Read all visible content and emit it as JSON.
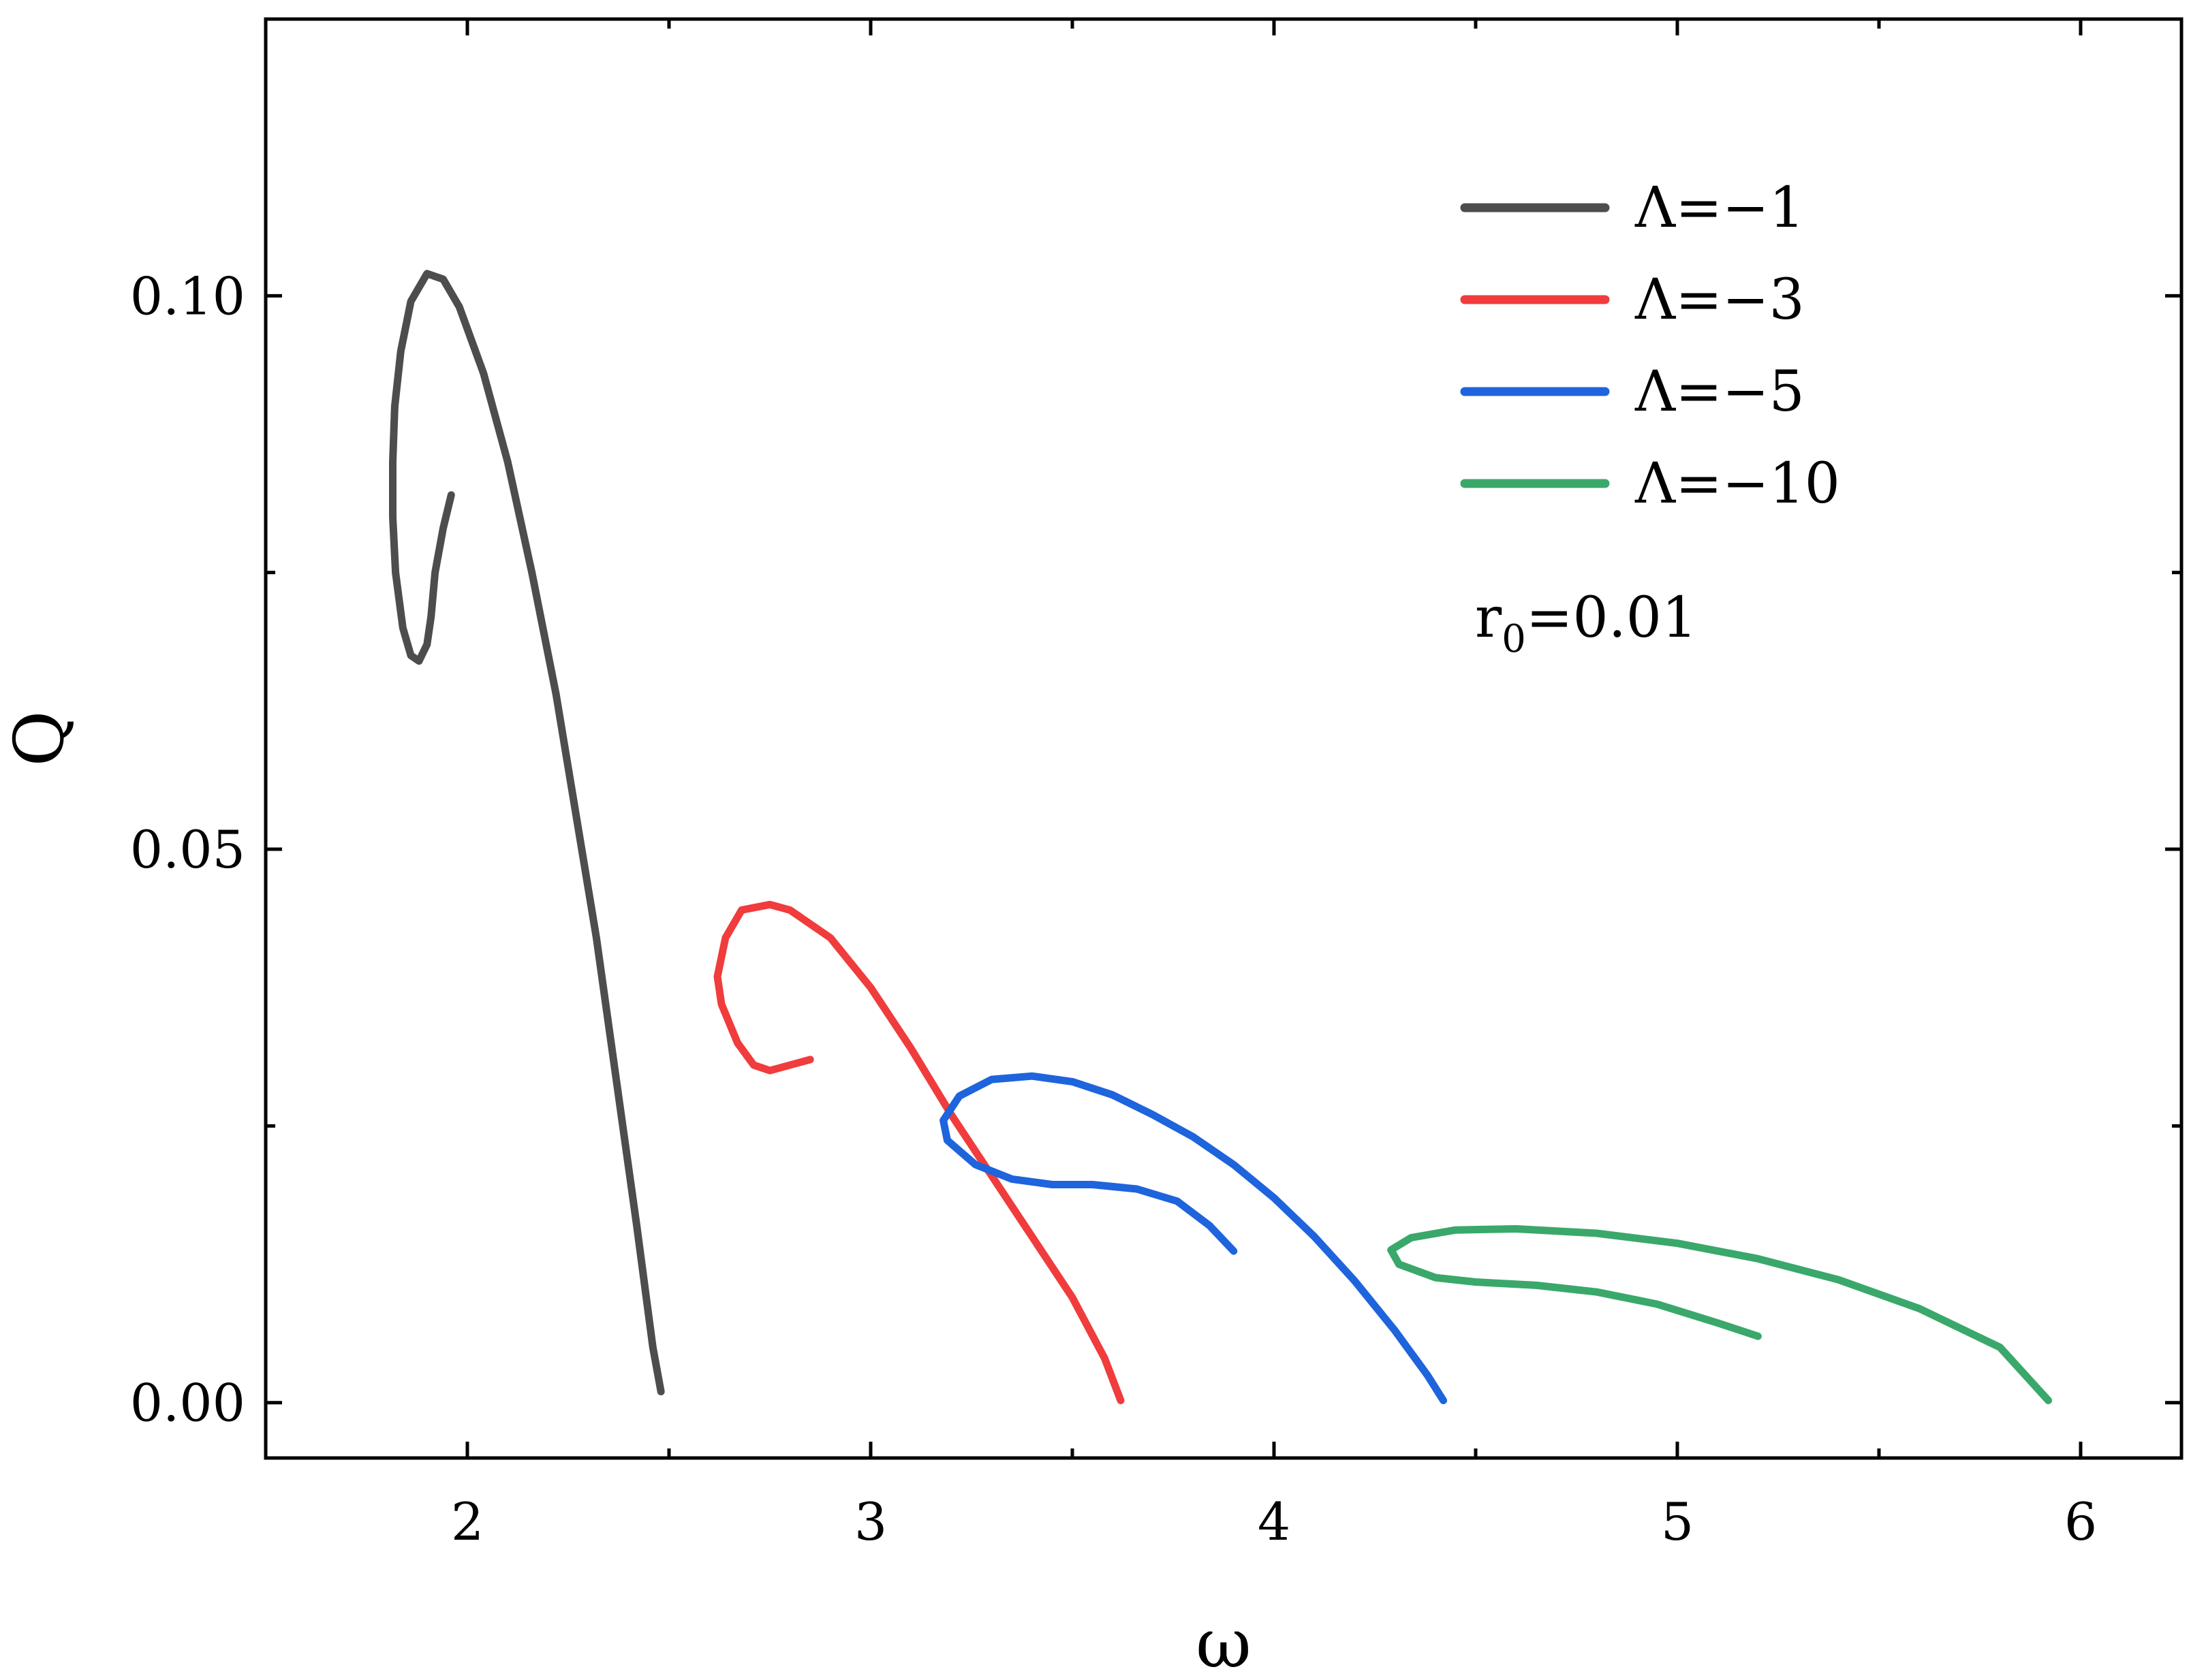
{
  "chart_data": {
    "type": "line",
    "xlabel": "ω",
    "ylabel": "Q",
    "xlim": [
      1.5,
      6.25
    ],
    "ylim": [
      -0.005,
      0.125
    ],
    "x_ticks": [
      2,
      3,
      4,
      5,
      6
    ],
    "x_tick_labels": [
      "2",
      "3",
      "4",
      "5",
      "6"
    ],
    "x_minor_ticks": [
      2.5,
      3.5,
      4.5,
      5.5
    ],
    "y_ticks": [
      0.0,
      0.05,
      0.1
    ],
    "y_tick_labels": [
      "0.00",
      "0.05",
      "0.10"
    ],
    "y_minor_ticks": [
      0.025,
      0.075
    ],
    "grid": false,
    "legend_position": "top-right",
    "annotation": {
      "label": "r",
      "subscript": "0",
      "value": "=0.01"
    },
    "series": [
      {
        "name": "Λ=−1",
        "color": "#4d4d4d",
        "points": [
          [
            1.96,
            0.082
          ],
          [
            1.94,
            0.079
          ],
          [
            1.92,
            0.075
          ],
          [
            1.91,
            0.071
          ],
          [
            1.9,
            0.0685
          ],
          [
            1.88,
            0.067
          ],
          [
            1.86,
            0.0675
          ],
          [
            1.84,
            0.07
          ],
          [
            1.822,
            0.075
          ],
          [
            1.815,
            0.08
          ],
          [
            1.815,
            0.085
          ],
          [
            1.82,
            0.09
          ],
          [
            1.835,
            0.095
          ],
          [
            1.86,
            0.0995
          ],
          [
            1.9,
            0.102
          ],
          [
            1.94,
            0.1015
          ],
          [
            1.98,
            0.099
          ],
          [
            2.04,
            0.093
          ],
          [
            2.1,
            0.085
          ],
          [
            2.16,
            0.075
          ],
          [
            2.22,
            0.064
          ],
          [
            2.27,
            0.053
          ],
          [
            2.32,
            0.042
          ],
          [
            2.37,
            0.029
          ],
          [
            2.42,
            0.016
          ],
          [
            2.46,
            0.005
          ],
          [
            2.48,
            0.001
          ]
        ]
      },
      {
        "name": "Λ=−3",
        "color": "#f03c3c",
        "points": [
          [
            2.85,
            0.031
          ],
          [
            2.8,
            0.0305
          ],
          [
            2.75,
            0.03
          ],
          [
            2.71,
            0.0305
          ],
          [
            2.67,
            0.0325
          ],
          [
            2.63,
            0.036
          ],
          [
            2.62,
            0.0385
          ],
          [
            2.64,
            0.042
          ],
          [
            2.68,
            0.0445
          ],
          [
            2.75,
            0.045
          ],
          [
            2.8,
            0.0445
          ],
          [
            2.9,
            0.042
          ],
          [
            3.0,
            0.0375
          ],
          [
            3.1,
            0.032
          ],
          [
            3.2,
            0.026
          ],
          [
            3.3,
            0.0205
          ],
          [
            3.4,
            0.015
          ],
          [
            3.5,
            0.0095
          ],
          [
            3.58,
            0.004
          ],
          [
            3.62,
            0.0002
          ]
        ]
      },
      {
        "name": "Λ=−5",
        "color": "#1e64dc",
        "points": [
          [
            3.9,
            0.0137
          ],
          [
            3.84,
            0.016
          ],
          [
            3.76,
            0.0182
          ],
          [
            3.66,
            0.0193
          ],
          [
            3.55,
            0.0197
          ],
          [
            3.45,
            0.0197
          ],
          [
            3.35,
            0.0202
          ],
          [
            3.26,
            0.0215
          ],
          [
            3.19,
            0.0237
          ],
          [
            3.18,
            0.0255
          ],
          [
            3.22,
            0.0277
          ],
          [
            3.3,
            0.0292
          ],
          [
            3.4,
            0.0295
          ],
          [
            3.5,
            0.029
          ],
          [
            3.6,
            0.0278
          ],
          [
            3.7,
            0.026
          ],
          [
            3.8,
            0.024
          ],
          [
            3.9,
            0.0215
          ],
          [
            4.0,
            0.0185
          ],
          [
            4.1,
            0.015
          ],
          [
            4.2,
            0.011
          ],
          [
            4.3,
            0.0065
          ],
          [
            4.38,
            0.0025
          ],
          [
            4.42,
            0.0002
          ]
        ]
      },
      {
        "name": "Λ=−10",
        "color": "#3aa86a",
        "points": [
          [
            5.2,
            0.006
          ],
          [
            5.1,
            0.0072
          ],
          [
            4.95,
            0.0089
          ],
          [
            4.8,
            0.01
          ],
          [
            4.65,
            0.0106
          ],
          [
            4.5,
            0.0109
          ],
          [
            4.4,
            0.0113
          ],
          [
            4.31,
            0.0125
          ],
          [
            4.29,
            0.0138
          ],
          [
            4.34,
            0.0149
          ],
          [
            4.45,
            0.0156
          ],
          [
            4.6,
            0.0157
          ],
          [
            4.8,
            0.0153
          ],
          [
            5.0,
            0.0144
          ],
          [
            5.2,
            0.013
          ],
          [
            5.4,
            0.0111
          ],
          [
            5.6,
            0.0085
          ],
          [
            5.8,
            0.005
          ],
          [
            5.92,
            0.0002
          ]
        ]
      }
    ]
  }
}
